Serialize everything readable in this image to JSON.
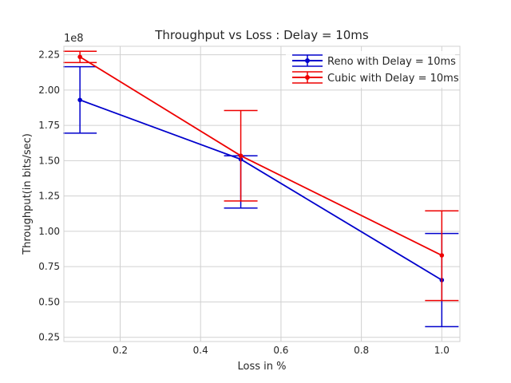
{
  "chart_data": {
    "type": "line",
    "title": "Throughput vs Loss : Delay = 10ms",
    "xlabel": "Loss in %",
    "ylabel": "Throughput(in bits/sec)",
    "y_offset_label": "1e8",
    "xlim": [
      0.06,
      1.045
    ],
    "ylim": [
      0.22,
      2.31
    ],
    "x_ticks": [
      "0.2",
      "0.4",
      "0.6",
      "0.8",
      "1.0"
    ],
    "x_tick_values": [
      0.2,
      0.4,
      0.6,
      0.8,
      1.0
    ],
    "y_ticks": [
      "0.25",
      "0.50",
      "0.75",
      "1.00",
      "1.25",
      "1.50",
      "1.75",
      "2.00",
      "2.25"
    ],
    "y_tick_values": [
      0.25,
      0.5,
      0.75,
      1.0,
      1.25,
      1.5,
      1.75,
      2.0,
      2.25
    ],
    "grid": true,
    "legend_position": "top-right",
    "x": [
      0.1,
      0.5,
      1.0
    ],
    "series": [
      {
        "name": "Reno with Delay = 10ms",
        "color": "#0000cc",
        "values": [
          1.93,
          1.51,
          0.655
        ],
        "err_low": [
          1.695,
          1.165,
          0.325
        ],
        "err_high": [
          2.165,
          1.535,
          0.985
        ]
      },
      {
        "name": "Cubic with Delay = 10ms",
        "color": "#ee0000",
        "values": [
          2.235,
          1.535,
          0.83
        ],
        "err_low": [
          2.195,
          1.215,
          0.51
        ],
        "err_high": [
          2.275,
          1.855,
          1.145
        ]
      }
    ]
  }
}
